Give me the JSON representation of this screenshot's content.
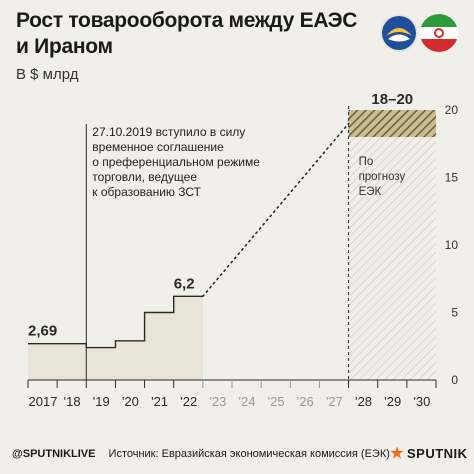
{
  "header": {
    "title_line1": "Рост товарооборота между ЕАЭС",
    "title_line2": "и Ираном",
    "unit": "В $ млрд"
  },
  "logos": {
    "left_icon": "eaeu-logo-icon",
    "right_icon": "iran-flag-icon"
  },
  "footer": {
    "handle": "@SPUTNIKLIVE",
    "source": "Источник: Евразийская экономическая комиссия (ЕЭК)",
    "brand": "SPUTNIK"
  },
  "colors": {
    "background": "#f1efe9",
    "line": "#2a2a2a",
    "area_fill": "#e9e3d8",
    "forecast_band": "#8a7a4a",
    "forecast_fill": "#e6e1d6",
    "axis_label": "#333333",
    "future_tick": "#9a9a9a"
  },
  "chart_data": {
    "type": "line",
    "step": true,
    "title": "Рост товарооборота между ЕАЭС и Ираном",
    "ylabel": "В $ млрд",
    "ylim": [
      0,
      20
    ],
    "y_ticks": [
      0,
      5,
      10,
      15,
      20
    ],
    "y_tick_labels": [
      "0",
      "5",
      "10",
      "15",
      "20"
    ],
    "x_range": [
      2017,
      2031
    ],
    "x_ticks": [
      2017,
      2018,
      2019,
      2020,
      2021,
      2022,
      2023,
      2024,
      2025,
      2026,
      2027,
      2028,
      2029,
      2030
    ],
    "x_tick_labels": [
      "2017",
      "'18",
      "'19",
      "'20",
      "'21",
      "'22",
      "'23",
      "'24",
      "'25",
      "'26",
      "'27",
      "'28",
      "'29",
      "'30"
    ],
    "future_from": 2023,
    "series": [
      {
        "kind": "actual",
        "x": [
          2017,
          2018,
          2019,
          2020,
          2021,
          2022
        ],
        "values": [
          2.69,
          2.69,
          2.4,
          2.9,
          5.0,
          6.2
        ]
      }
    ],
    "data_labels": [
      {
        "x": 2017,
        "value": 2.69,
        "text": "2,69"
      },
      {
        "x": 2022,
        "value": 6.2,
        "text": "6,2"
      }
    ],
    "projection": {
      "from_x": 2023,
      "from_value": 6.2,
      "to_x": 2028,
      "to_value": 19
    },
    "forecast": {
      "x_start": 2028,
      "x_end": 2031,
      "low": 18,
      "high": 20,
      "label": "18–20",
      "note": [
        "По",
        "прогнозу",
        "ЕЭК"
      ]
    },
    "annotation": {
      "x": 2019,
      "lines": [
        "27.10.2019 вступило в силу",
        "временное соглашение",
        "о преференциальном режиме",
        "торговли, ведущее",
        "к образованию ЗСТ"
      ]
    }
  }
}
